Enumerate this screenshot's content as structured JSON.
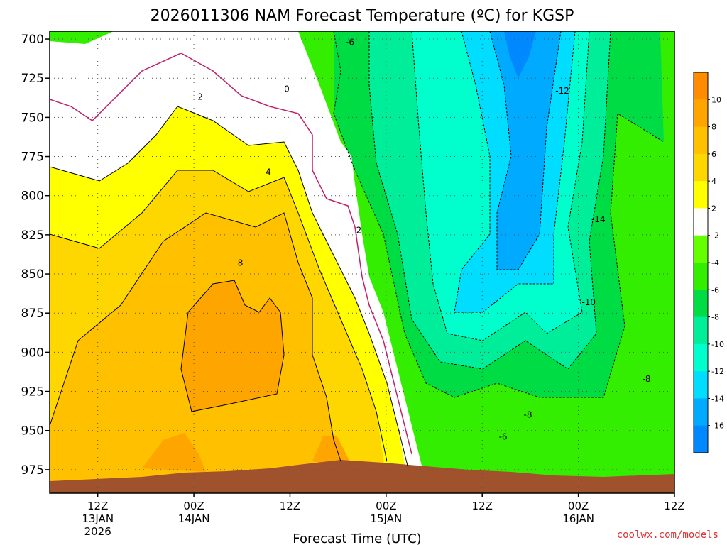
{
  "chart_data": {
    "type": "heatmap",
    "title": "2026011306 NAM Forecast Temperature (ºC) for KGSP",
    "xlabel": "Forecast Time (UTC)",
    "credit": "coolwx.com/models",
    "y_axis": {
      "ticks": [
        700,
        725,
        750,
        775,
        800,
        825,
        850,
        875,
        900,
        925,
        950,
        975
      ],
      "range": [
        695,
        990
      ],
      "reversed": true
    },
    "x_axis": {
      "hours": [
        6,
        84
      ],
      "ticks": [
        {
          "hour": 12,
          "lines": [
            "12Z",
            "13JAN",
            "2026"
          ]
        },
        {
          "hour": 24,
          "lines": [
            "00Z",
            "14JAN"
          ]
        },
        {
          "hour": 36,
          "lines": [
            "12Z"
          ]
        },
        {
          "hour": 48,
          "lines": [
            "00Z",
            "15JAN"
          ]
        },
        {
          "hour": 60,
          "lines": [
            "12Z"
          ]
        },
        {
          "hour": 72,
          "lines": [
            "00Z",
            "16JAN"
          ]
        },
        {
          "hour": 84,
          "lines": [
            "12Z"
          ]
        }
      ]
    },
    "grid": true,
    "colorbar": {
      "placement": "right",
      "labels": [
        "10",
        "8",
        "6",
        "4",
        "2",
        "-2",
        "-4",
        "-6",
        "-8",
        "-10",
        "-12",
        "-14",
        "-16"
      ],
      "colors": [
        "#ff8c00",
        "#ffa500",
        "#ffc000",
        "#ffd700",
        "#ffff00",
        "#ffffff",
        "#66ff00",
        "#33ee00",
        "#00dd44",
        "#00ee99",
        "#00ffcc",
        "#00ddff",
        "#00aaff",
        "#0088ff"
      ]
    },
    "contour_labels": [
      {
        "text": "-6",
        "hour": 43.5,
        "p": 702
      },
      {
        "text": "-12",
        "hour": 70,
        "p": 733
      },
      {
        "text": "0",
        "hour": 35.6,
        "p": 732
      },
      {
        "text": "2",
        "hour": 24.8,
        "p": 737
      },
      {
        "text": "4",
        "hour": 33.3,
        "p": 785
      },
      {
        "text": "2",
        "hour": 44.6,
        "p": 822
      },
      {
        "text": "-14",
        "hour": 74.5,
        "p": 815
      },
      {
        "text": "8",
        "hour": 29.8,
        "p": 843
      },
      {
        "text": "-10",
        "hour": 73.3,
        "p": 868
      },
      {
        "text": "-8",
        "hour": 80.5,
        "p": 917
      },
      {
        "text": "-8",
        "hour": 65.7,
        "p": 940
      },
      {
        "text": "-6",
        "hour": 62.6,
        "p": 954
      }
    ]
  }
}
